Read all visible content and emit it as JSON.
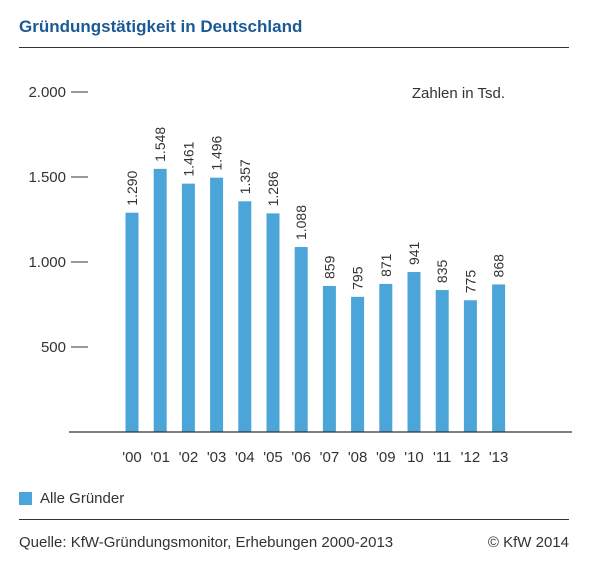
{
  "title": "Gründungstätigkeit in Deutschland",
  "unit_note": "Zahlen in Tsd.",
  "legend": {
    "label": "Alle Gründer",
    "color": "#4ba5d8"
  },
  "source": "Quelle: KfW-Gründungsmonitor, Erhebungen 2000-2013",
  "copyright": "© KfW 2014",
  "colors": {
    "bar": "#4ba5d8",
    "title": "#1b5a95",
    "axis": "#333333"
  },
  "chart_data": {
    "type": "bar",
    "categories": [
      "'00",
      "'01",
      "'02",
      "'03",
      "'04",
      "'05",
      "'06",
      "'07",
      "'08",
      "'09",
      "'10",
      "'11",
      "'12",
      "'13"
    ],
    "series": [
      {
        "name": "Alle Gründer",
        "values": [
          1290,
          1548,
          1461,
          1496,
          1357,
          1286,
          1088,
          859,
          795,
          871,
          941,
          835,
          775,
          868
        ]
      }
    ],
    "value_labels": [
      "1.290",
      "1.548",
      "1.461",
      "1.496",
      "1.357",
      "1.286",
      "1.088",
      "859",
      "795",
      "871",
      "941",
      "835",
      "775",
      "868"
    ],
    "yticks": [
      500,
      1000,
      1500,
      2000
    ],
    "ytick_labels": [
      "500",
      "1.000",
      "1.500",
      "2.000"
    ],
    "ylim": [
      0,
      2000
    ],
    "grid": false,
    "legend_position": "bottom-left"
  }
}
